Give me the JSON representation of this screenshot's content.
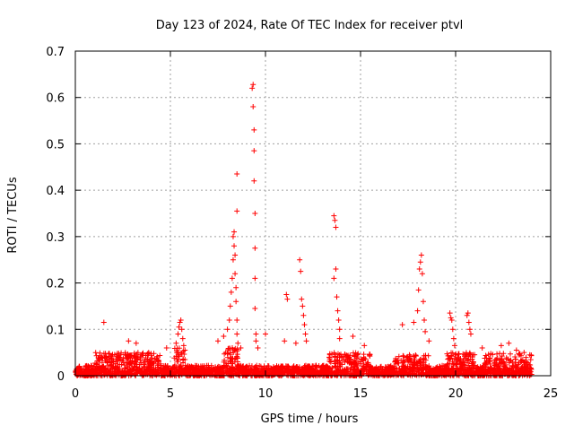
{
  "chart_data": {
    "type": "scatter",
    "title": "Day 123 of 2024, Rate Of TEC Index for receiver ptvl",
    "xlabel": "GPS time / hours",
    "ylabel": "ROTI / TECUs",
    "xlim": [
      0,
      25
    ],
    "ylim": [
      0,
      0.7
    ],
    "x_ticks": [
      0,
      5,
      10,
      15,
      20,
      25
    ],
    "x_tick_labels": [
      "0",
      "5",
      "10",
      "15",
      "20",
      "25"
    ],
    "y_ticks": [
      0,
      0.1,
      0.2,
      0.3,
      0.4,
      0.5,
      0.6,
      0.7
    ],
    "y_tick_labels": [
      "0",
      "0.1",
      "0.2",
      "0.3",
      "0.4",
      "0.5",
      "0.6",
      "0.7"
    ],
    "grid": true,
    "marker": "+",
    "marker_color": "#ff0000",
    "series": [
      {
        "name": "ROTI",
        "points": [
          [
            1.5,
            0.115
          ],
          [
            2.8,
            0.075
          ],
          [
            3.2,
            0.07
          ],
          [
            4.8,
            0.06
          ],
          [
            5.3,
            0.07
          ],
          [
            5.4,
            0.09
          ],
          [
            5.45,
            0.105
          ],
          [
            5.5,
            0.115
          ],
          [
            5.55,
            0.12
          ],
          [
            5.6,
            0.1
          ],
          [
            5.65,
            0.08
          ],
          [
            5.7,
            0.065
          ],
          [
            7.5,
            0.075
          ],
          [
            7.8,
            0.085
          ],
          [
            8.0,
            0.1
          ],
          [
            8.1,
            0.12
          ],
          [
            8.15,
            0.15
          ],
          [
            8.2,
            0.18
          ],
          [
            8.25,
            0.21
          ],
          [
            8.3,
            0.25
          ],
          [
            8.3,
            0.3
          ],
          [
            8.35,
            0.28
          ],
          [
            8.35,
            0.31
          ],
          [
            8.4,
            0.26
          ],
          [
            8.4,
            0.22
          ],
          [
            8.45,
            0.19
          ],
          [
            8.45,
            0.16
          ],
          [
            8.5,
            0.12
          ],
          [
            8.5,
            0.09
          ],
          [
            8.55,
            0.07
          ],
          [
            8.5,
            0.355
          ],
          [
            8.5,
            0.435
          ],
          [
            8.7,
            0.06
          ],
          [
            9.3,
            0.62
          ],
          [
            9.35,
            0.628
          ],
          [
            9.35,
            0.58
          ],
          [
            9.4,
            0.53
          ],
          [
            9.4,
            0.485
          ],
          [
            9.4,
            0.42
          ],
          [
            9.45,
            0.35
          ],
          [
            9.45,
            0.275
          ],
          [
            9.45,
            0.21
          ],
          [
            9.45,
            0.145
          ],
          [
            9.5,
            0.09
          ],
          [
            9.5,
            0.075
          ],
          [
            9.6,
            0.06
          ],
          [
            10.0,
            0.09
          ],
          [
            11.1,
            0.175
          ],
          [
            11.15,
            0.165
          ],
          [
            11.8,
            0.25
          ],
          [
            11.85,
            0.225
          ],
          [
            11.9,
            0.165
          ],
          [
            11.95,
            0.15
          ],
          [
            12.0,
            0.13
          ],
          [
            12.05,
            0.11
          ],
          [
            12.1,
            0.09
          ],
          [
            12.15,
            0.075
          ],
          [
            11.0,
            0.075
          ],
          [
            11.6,
            0.07
          ],
          [
            13.6,
            0.345
          ],
          [
            13.65,
            0.335
          ],
          [
            13.7,
            0.32
          ],
          [
            13.7,
            0.23
          ],
          [
            13.6,
            0.21
          ],
          [
            13.75,
            0.17
          ],
          [
            13.8,
            0.14
          ],
          [
            13.85,
            0.12
          ],
          [
            13.9,
            0.1
          ],
          [
            13.9,
            0.08
          ],
          [
            14.6,
            0.085
          ],
          [
            15.2,
            0.065
          ],
          [
            17.2,
            0.11
          ],
          [
            17.8,
            0.115
          ],
          [
            18.0,
            0.14
          ],
          [
            18.05,
            0.185
          ],
          [
            18.1,
            0.23
          ],
          [
            18.15,
            0.245
          ],
          [
            18.2,
            0.26
          ],
          [
            18.25,
            0.22
          ],
          [
            18.3,
            0.16
          ],
          [
            18.35,
            0.12
          ],
          [
            18.4,
            0.095
          ],
          [
            18.6,
            0.075
          ],
          [
            19.7,
            0.135
          ],
          [
            19.75,
            0.125
          ],
          [
            19.8,
            0.12
          ],
          [
            19.85,
            0.1
          ],
          [
            19.9,
            0.08
          ],
          [
            19.95,
            0.065
          ],
          [
            20.6,
            0.13
          ],
          [
            20.65,
            0.135
          ],
          [
            20.7,
            0.115
          ],
          [
            20.75,
            0.1
          ],
          [
            20.8,
            0.09
          ],
          [
            21.4,
            0.06
          ],
          [
            22.4,
            0.065
          ],
          [
            22.8,
            0.07
          ],
          [
            23.2,
            0.055
          ],
          [
            23.6,
            0.05
          ],
          [
            23.9,
            0.045
          ]
        ]
      }
    ],
    "annotations": []
  }
}
